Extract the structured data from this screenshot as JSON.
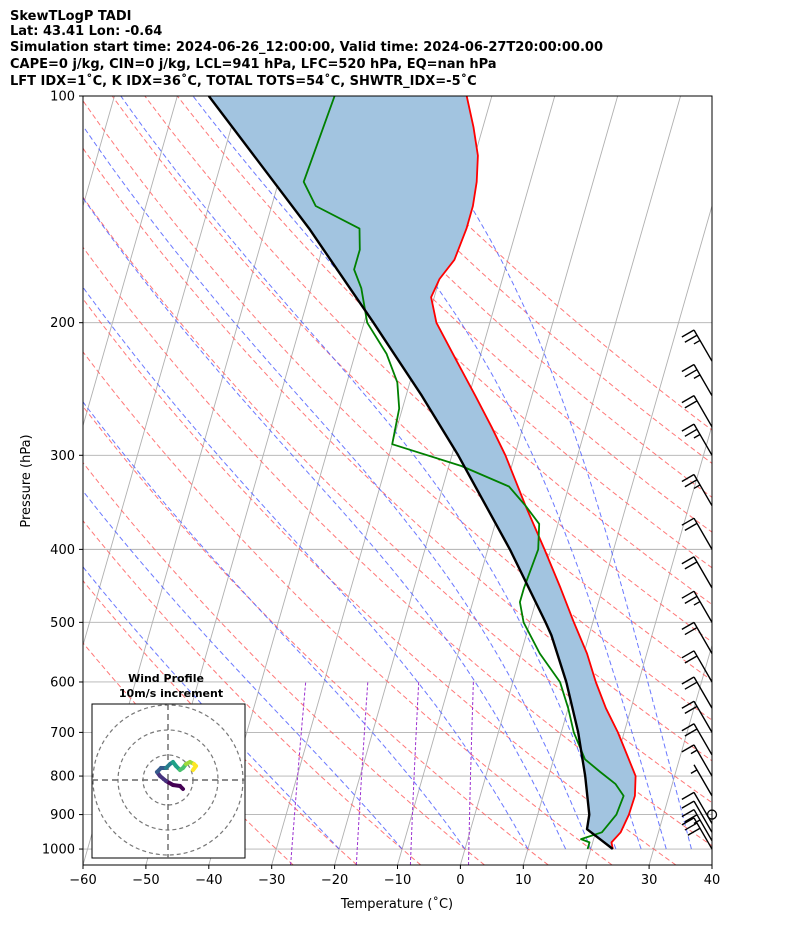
{
  "header": {
    "line1": "SkewTLogP TADI",
    "line2": "Lat: 43.41   Lon: -0.64",
    "line3": "Simulation start time: 2024-06-26_12:00:00, Valid time: 2024-06-27T20:00:00.00",
    "line4": "CAPE=0 j/kg, CIN=0 j/kg, LCL=941 hPa, LFC=520 hPa, EQ=nan hPa",
    "line5": "LFT IDX=1˚C, K IDX=36˚C, TOTAL TOTS=54˚C, SHWTR_IDX=-5˚C"
  },
  "chart_data": {
    "type": "line",
    "subtype": "skew-T log-P diagram",
    "xlabel": "Temperature (˚C)",
    "ylabel": "Pressure (hPa)",
    "x_ticks": [
      -60,
      -50,
      -40,
      -30,
      -20,
      -10,
      0,
      10,
      20,
      30,
      40
    ],
    "y_ticks": [
      100,
      200,
      300,
      400,
      500,
      600,
      700,
      800,
      900,
      1000
    ],
    "xlim": [
      -60,
      40
    ],
    "ylim": [
      1050,
      100
    ],
    "y_scale": "log",
    "grid": true,
    "colors": {
      "temperature": "#ff0000",
      "dewpoint": "#008000",
      "parcel": "#000000",
      "cape_fill": "#a2c4e0",
      "dry_adiabats": "#ff6060",
      "moist_adiabats": "#5060ff",
      "mixing_ratio": "#9b30d0",
      "isotherms": "#b0b0b0"
    },
    "series": [
      {
        "key": "temperature",
        "points": [
          [
            1000,
            23.5
          ],
          [
            980,
            23.0
          ],
          [
            950,
            24.0
          ],
          [
            900,
            24.5
          ],
          [
            850,
            24.6
          ],
          [
            800,
            23.8
          ],
          [
            750,
            21.5
          ],
          [
            700,
            19.0
          ],
          [
            650,
            16.0
          ],
          [
            600,
            13.2
          ],
          [
            550,
            10.5
          ],
          [
            500,
            7.0
          ],
          [
            450,
            3.3
          ],
          [
            400,
            -1.0
          ],
          [
            350,
            -6.0
          ],
          [
            300,
            -11.5
          ],
          [
            275,
            -15.0
          ],
          [
            250,
            -19.0
          ],
          [
            225,
            -23.5
          ],
          [
            200,
            -28.5
          ],
          [
            185,
            -30.5
          ],
          [
            175,
            -30.0
          ],
          [
            165,
            -28.5
          ],
          [
            150,
            -28.0
          ],
          [
            140,
            -28.0
          ],
          [
            130,
            -28.5
          ],
          [
            120,
            -29.5
          ],
          [
            110,
            -31.5
          ],
          [
            100,
            -34.0
          ]
        ]
      },
      {
        "key": "dewpoint",
        "points": [
          [
            1000,
            19.5
          ],
          [
            980,
            19.5
          ],
          [
            970,
            18.0
          ],
          [
            950,
            21.0
          ],
          [
            900,
            22.5
          ],
          [
            850,
            22.8
          ],
          [
            820,
            21.0
          ],
          [
            790,
            18.0
          ],
          [
            760,
            15.0
          ],
          [
            700,
            12.0
          ],
          [
            650,
            10.0
          ],
          [
            600,
            7.5
          ],
          [
            550,
            3.0
          ],
          [
            500,
            -1.0
          ],
          [
            470,
            -2.5
          ],
          [
            450,
            -2.5
          ],
          [
            400,
            -2.0
          ],
          [
            370,
            -3.0
          ],
          [
            350,
            -6.0
          ],
          [
            330,
            -9.5
          ],
          [
            310,
            -18.0
          ],
          [
            290,
            -30.0
          ],
          [
            260,
            -30.5
          ],
          [
            240,
            -32.0
          ],
          [
            220,
            -35.0
          ],
          [
            200,
            -39.5
          ],
          [
            180,
            -42.0
          ],
          [
            170,
            -44.0
          ],
          [
            160,
            -44.0
          ],
          [
            150,
            -45.0
          ],
          [
            140,
            -53.0
          ],
          [
            130,
            -56.0
          ],
          [
            100,
            -55.0
          ]
        ]
      },
      {
        "key": "parcel",
        "points": [
          [
            1000,
            23.5
          ],
          [
            970,
            21.0
          ],
          [
            941,
            18.5
          ],
          [
            900,
            18.2
          ],
          [
            800,
            15.8
          ],
          [
            700,
            12.7
          ],
          [
            600,
            8.5
          ],
          [
            520,
            4.0
          ],
          [
            500,
            2.5
          ],
          [
            400,
            -6.5
          ],
          [
            300,
            -19.0
          ],
          [
            250,
            -27.5
          ],
          [
            200,
            -38.5
          ],
          [
            150,
            -53.0
          ],
          [
            100,
            -75.0
          ]
        ]
      }
    ],
    "wind_barbs": {
      "pressures_hPa": [
        1000,
        975,
        950,
        925,
        900,
        850,
        800,
        750,
        700,
        650,
        600,
        550,
        500,
        450,
        400,
        350,
        300,
        275,
        250,
        225
      ],
      "speeds_kt": [
        30,
        25,
        10,
        10,
        0,
        5,
        15,
        20,
        20,
        20,
        20,
        20,
        25,
        20,
        20,
        25,
        25,
        20,
        25,
        25
      ]
    },
    "hodograph": {
      "title": "Wind Profile",
      "subtitle": "10m/s increment"
    }
  }
}
